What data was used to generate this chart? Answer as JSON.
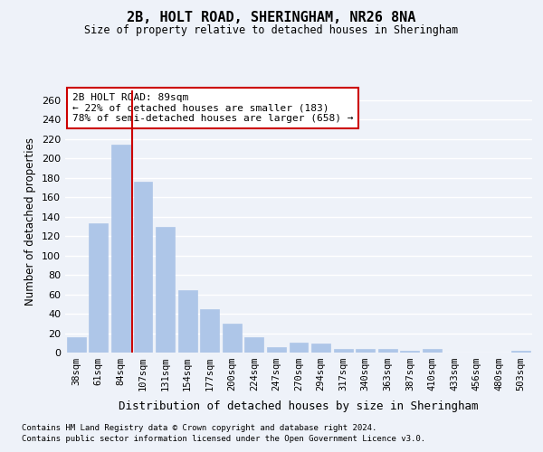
{
  "title": "2B, HOLT ROAD, SHERINGHAM, NR26 8NA",
  "subtitle": "Size of property relative to detached houses in Sheringham",
  "xlabel": "Distribution of detached houses by size in Sheringham",
  "ylabel": "Number of detached properties",
  "categories": [
    "38sqm",
    "61sqm",
    "84sqm",
    "107sqm",
    "131sqm",
    "154sqm",
    "177sqm",
    "200sqm",
    "224sqm",
    "247sqm",
    "270sqm",
    "294sqm",
    "317sqm",
    "340sqm",
    "363sqm",
    "387sqm",
    "410sqm",
    "433sqm",
    "456sqm",
    "480sqm",
    "503sqm"
  ],
  "values": [
    16,
    133,
    214,
    176,
    129,
    64,
    45,
    30,
    16,
    6,
    10,
    9,
    4,
    4,
    4,
    2,
    4,
    0,
    0,
    0,
    2
  ],
  "bar_color": "#aec6e8",
  "bar_edgecolor": "#aec6e8",
  "redline_index": 2,
  "annotation_text": "2B HOLT ROAD: 89sqm\n← 22% of detached houses are smaller (183)\n78% of semi-detached houses are larger (658) →",
  "annotation_box_color": "#ffffff",
  "annotation_box_edgecolor": "#cc0000",
  "redline_color": "#cc0000",
  "background_color": "#eef2f9",
  "grid_color": "#ffffff",
  "yticks": [
    0,
    20,
    40,
    60,
    80,
    100,
    120,
    140,
    160,
    180,
    200,
    220,
    240,
    260
  ],
  "ylim": [
    0,
    270
  ],
  "footer1": "Contains HM Land Registry data © Crown copyright and database right 2024.",
  "footer2": "Contains public sector information licensed under the Open Government Licence v3.0."
}
